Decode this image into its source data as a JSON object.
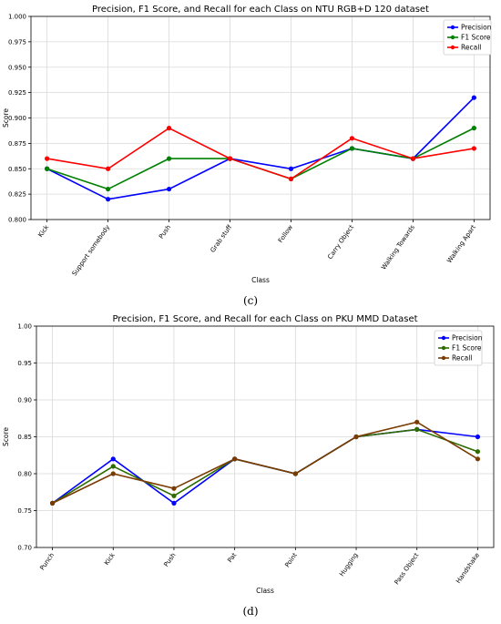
{
  "chart_data": [
    {
      "type": "line",
      "title": "Precision, F1 Score, and Recall for each Class on NTU RGB+D 120 dataset",
      "xlabel": "Class",
      "ylabel": "Score",
      "ylim": [
        0.8,
        1.0
      ],
      "yticks": [
        "0.800",
        "0.825",
        "0.850",
        "0.875",
        "0.900",
        "0.925",
        "0.950",
        "0.975",
        "1.000"
      ],
      "categories": [
        "Kick",
        "Support somebody",
        "Push",
        "Grab stuff",
        "Follow",
        "Carry Object",
        "Walking Towards",
        "Walking Apart"
      ],
      "grid": true,
      "legend": "top-right",
      "caption": "(c)",
      "series": [
        {
          "name": "Precision",
          "color": "#0000ff",
          "values": [
            0.85,
            0.82,
            0.83,
            0.86,
            0.85,
            0.87,
            0.86,
            0.92
          ]
        },
        {
          "name": "F1 Score",
          "color": "#008000",
          "values": [
            0.85,
            0.83,
            0.86,
            0.86,
            0.84,
            0.87,
            0.86,
            0.89
          ]
        },
        {
          "name": "Recall",
          "color": "#ff0000",
          "values": [
            0.86,
            0.85,
            0.89,
            0.86,
            0.84,
            0.88,
            0.86,
            0.87
          ]
        }
      ]
    },
    {
      "type": "line",
      "title": "Precision, F1 Score, and Recall for each Class on PKU MMD Dataset",
      "xlabel": "Class",
      "ylabel": "Score",
      "ylim": [
        0.7,
        1.0
      ],
      "yticks": [
        "0.70",
        "0.75",
        "0.80",
        "0.85",
        "0.90",
        "0.95",
        "1.00"
      ],
      "categories": [
        "Punch",
        "Kick",
        "Push",
        "Pat",
        "Point",
        "Hugging",
        "Pass Object",
        "Handshake"
      ],
      "grid": true,
      "legend": "top-right",
      "caption": "(d)",
      "series": [
        {
          "name": "Precision",
          "color": "#0000ff",
          "values": [
            0.76,
            0.82,
            0.76,
            0.82,
            0.8,
            0.85,
            0.86,
            0.85
          ]
        },
        {
          "name": "F1 Score",
          "color": "#2e6b00",
          "values": [
            0.76,
            0.81,
            0.77,
            0.82,
            0.8,
            0.85,
            0.86,
            0.83
          ]
        },
        {
          "name": "Recall",
          "color": "#7a3b00",
          "values": [
            0.76,
            0.8,
            0.78,
            0.82,
            0.8,
            0.85,
            0.87,
            0.82
          ]
        }
      ]
    }
  ]
}
